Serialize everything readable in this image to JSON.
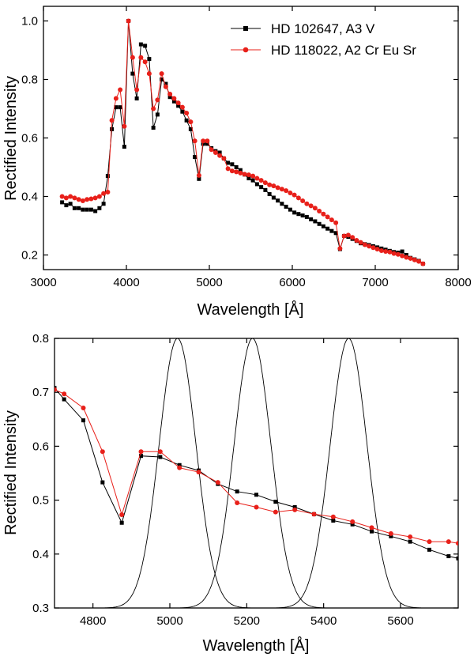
{
  "colors": {
    "series_black": "#000000",
    "series_red": "#e8201a",
    "frame": "#000000"
  },
  "chart_data": [
    {
      "type": "line",
      "xlabel": "Wavelength [Å]",
      "ylabel": "Rectified Intensity",
      "xlim": [
        3000,
        8000
      ],
      "ylim": [
        0.15,
        1.05
      ],
      "xticks": [
        3000,
        4000,
        5000,
        6000,
        7000,
        8000
      ],
      "yticks": [
        0.2,
        0.4,
        0.6,
        0.8,
        1.0
      ],
      "xtick_labels": [
        "3000",
        "4000",
        "5000",
        "6000",
        "7000",
        "8000"
      ],
      "ytick_labels": [
        "0.2",
        "0.4",
        "0.6",
        "0.8",
        "1.0"
      ],
      "legend_position": "top-right",
      "grid": false,
      "series": [
        {
          "name": "HD 102647, A3 V",
          "color": "#000000",
          "marker": "square",
          "x": [
            3225,
            3275,
            3325,
            3375,
            3425,
            3475,
            3525,
            3575,
            3625,
            3675,
            3725,
            3775,
            3825,
            3875,
            3925,
            3975,
            4025,
            4075,
            4125,
            4175,
            4225,
            4275,
            4325,
            4375,
            4425,
            4475,
            4525,
            4575,
            4625,
            4675,
            4725,
            4775,
            4825,
            4875,
            4925,
            4975,
            5025,
            5075,
            5125,
            5175,
            5225,
            5275,
            5325,
            5375,
            5425,
            5475,
            5525,
            5575,
            5625,
            5675,
            5725,
            5775,
            5825,
            5875,
            5925,
            5975,
            6025,
            6075,
            6125,
            6175,
            6225,
            6275,
            6325,
            6375,
            6425,
            6475,
            6525,
            6575,
            6625,
            6675,
            6725,
            6775,
            6825,
            6875,
            6925,
            6975,
            7025,
            7075,
            7125,
            7175,
            7225,
            7275,
            7325,
            7375,
            7425,
            7475,
            7525,
            7575
          ],
          "y": [
            0.38,
            0.37,
            0.375,
            0.36,
            0.36,
            0.355,
            0.355,
            0.355,
            0.35,
            0.36,
            0.375,
            0.47,
            0.63,
            0.705,
            0.705,
            0.57,
            1.0,
            0.82,
            0.735,
            0.92,
            0.915,
            0.87,
            0.635,
            0.68,
            0.8,
            0.785,
            0.74,
            0.725,
            0.71,
            0.69,
            0.66,
            0.63,
            0.535,
            0.46,
            0.58,
            0.58,
            0.565,
            0.555,
            0.55,
            0.53,
            0.515,
            0.51,
            0.5,
            0.49,
            0.475,
            0.462,
            0.455,
            0.442,
            0.432,
            0.422,
            0.408,
            0.396,
            0.386,
            0.375,
            0.365,
            0.355,
            0.345,
            0.34,
            0.335,
            0.33,
            0.322,
            0.315,
            0.306,
            0.298,
            0.29,
            0.282,
            0.275,
            0.22,
            0.265,
            0.262,
            0.255,
            0.248,
            0.24,
            0.237,
            0.234,
            0.23,
            0.226,
            0.222,
            0.218,
            0.214,
            0.21,
            0.208,
            0.212,
            0.2,
            0.19,
            0.185,
            0.18,
            0.17
          ]
        },
        {
          "name": "HD 118022, A2 Cr Eu Sr",
          "color": "#e8201a",
          "marker": "circle",
          "x": [
            3225,
            3275,
            3325,
            3375,
            3425,
            3475,
            3525,
            3575,
            3625,
            3675,
            3725,
            3775,
            3825,
            3875,
            3925,
            3975,
            4025,
            4075,
            4125,
            4175,
            4225,
            4275,
            4325,
            4375,
            4425,
            4475,
            4525,
            4575,
            4625,
            4675,
            4725,
            4775,
            4825,
            4875,
            4925,
            4975,
            5025,
            5075,
            5125,
            5175,
            5225,
            5275,
            5325,
            5375,
            5425,
            5475,
            5525,
            5575,
            5625,
            5675,
            5725,
            5775,
            5825,
            5875,
            5925,
            5975,
            6025,
            6075,
            6125,
            6175,
            6225,
            6275,
            6325,
            6375,
            6425,
            6475,
            6525,
            6575,
            6625,
            6675,
            6725,
            6775,
            6825,
            6875,
            6925,
            6975,
            7025,
            7075,
            7125,
            7175,
            7225,
            7275,
            7325,
            7375,
            7425,
            7475,
            7525,
            7575
          ],
          "y": [
            0.4,
            0.395,
            0.4,
            0.395,
            0.39,
            0.385,
            0.39,
            0.392,
            0.395,
            0.4,
            0.41,
            0.415,
            0.66,
            0.735,
            0.765,
            0.64,
            1.0,
            0.875,
            0.765,
            0.875,
            0.86,
            0.82,
            0.7,
            0.73,
            0.82,
            0.775,
            0.75,
            0.735,
            0.72,
            0.705,
            0.685,
            0.655,
            0.59,
            0.472,
            0.59,
            0.59,
            0.56,
            0.55,
            0.54,
            0.53,
            0.495,
            0.487,
            0.484,
            0.48,
            0.476,
            0.474,
            0.47,
            0.462,
            0.455,
            0.447,
            0.44,
            0.436,
            0.43,
            0.425,
            0.42,
            0.412,
            0.405,
            0.395,
            0.385,
            0.375,
            0.368,
            0.36,
            0.35,
            0.34,
            0.33,
            0.32,
            0.31,
            0.222,
            0.265,
            0.268,
            0.26,
            0.25,
            0.243,
            0.235,
            0.23,
            0.225,
            0.22,
            0.215,
            0.212,
            0.21,
            0.205,
            0.202,
            0.197,
            0.192,
            0.188,
            0.183,
            0.178,
            0.17
          ]
        }
      ]
    },
    {
      "type": "line",
      "xlabel": "Wavelength [Å]",
      "ylabel": "Rectified Intensity",
      "xlim": [
        4700,
        5750
      ],
      "ylim": [
        0.3,
        0.8
      ],
      "xticks": [
        4800,
        5000,
        5200,
        5400,
        5600
      ],
      "yticks": [
        0.3,
        0.4,
        0.5,
        0.6,
        0.7,
        0.8
      ],
      "xtick_labels": [
        "4800",
        "5000",
        "5200",
        "5400",
        "5600"
      ],
      "ytick_labels": [
        "0.3",
        "0.4",
        "0.5",
        "0.6",
        "0.7",
        "0.8"
      ],
      "grid": false,
      "series": [
        {
          "color": "#000000",
          "marker": "square",
          "x": [
            4700,
            4725,
            4775,
            4825,
            4875,
            4925,
            4975,
            5025,
            5075,
            5125,
            5175,
            5225,
            5275,
            5325,
            5375,
            5425,
            5475,
            5525,
            5575,
            5625,
            5675,
            5725,
            5750
          ],
          "y": [
            0.708,
            0.687,
            0.648,
            0.533,
            0.458,
            0.582,
            0.58,
            0.565,
            0.555,
            0.53,
            0.516,
            0.51,
            0.497,
            0.487,
            0.474,
            0.462,
            0.455,
            0.442,
            0.433,
            0.423,
            0.408,
            0.396,
            0.392
          ]
        },
        {
          "color": "#e8201a",
          "marker": "circle",
          "x": [
            4700,
            4725,
            4775,
            4825,
            4875,
            4925,
            4975,
            5025,
            5075,
            5125,
            5175,
            5225,
            5275,
            5325,
            5375,
            5425,
            5475,
            5525,
            5575,
            5625,
            5675,
            5725,
            5750
          ],
          "y": [
            0.705,
            0.697,
            0.671,
            0.59,
            0.473,
            0.59,
            0.59,
            0.56,
            0.552,
            0.533,
            0.495,
            0.487,
            0.478,
            0.482,
            0.474,
            0.469,
            0.46,
            0.449,
            0.438,
            0.432,
            0.423,
            0.423,
            0.42
          ]
        },
        {
          "kind": "filter-curves",
          "color": "#000000",
          "curves": [
            {
              "center": 5020,
              "sigma": 48,
              "peak": 0.8,
              "base": 0.3
            },
            {
              "center": 5215,
              "sigma": 48,
              "peak": 0.8,
              "base": 0.3
            },
            {
              "center": 5465,
              "sigma": 48,
              "peak": 0.8,
              "base": 0.3
            }
          ]
        }
      ]
    }
  ]
}
